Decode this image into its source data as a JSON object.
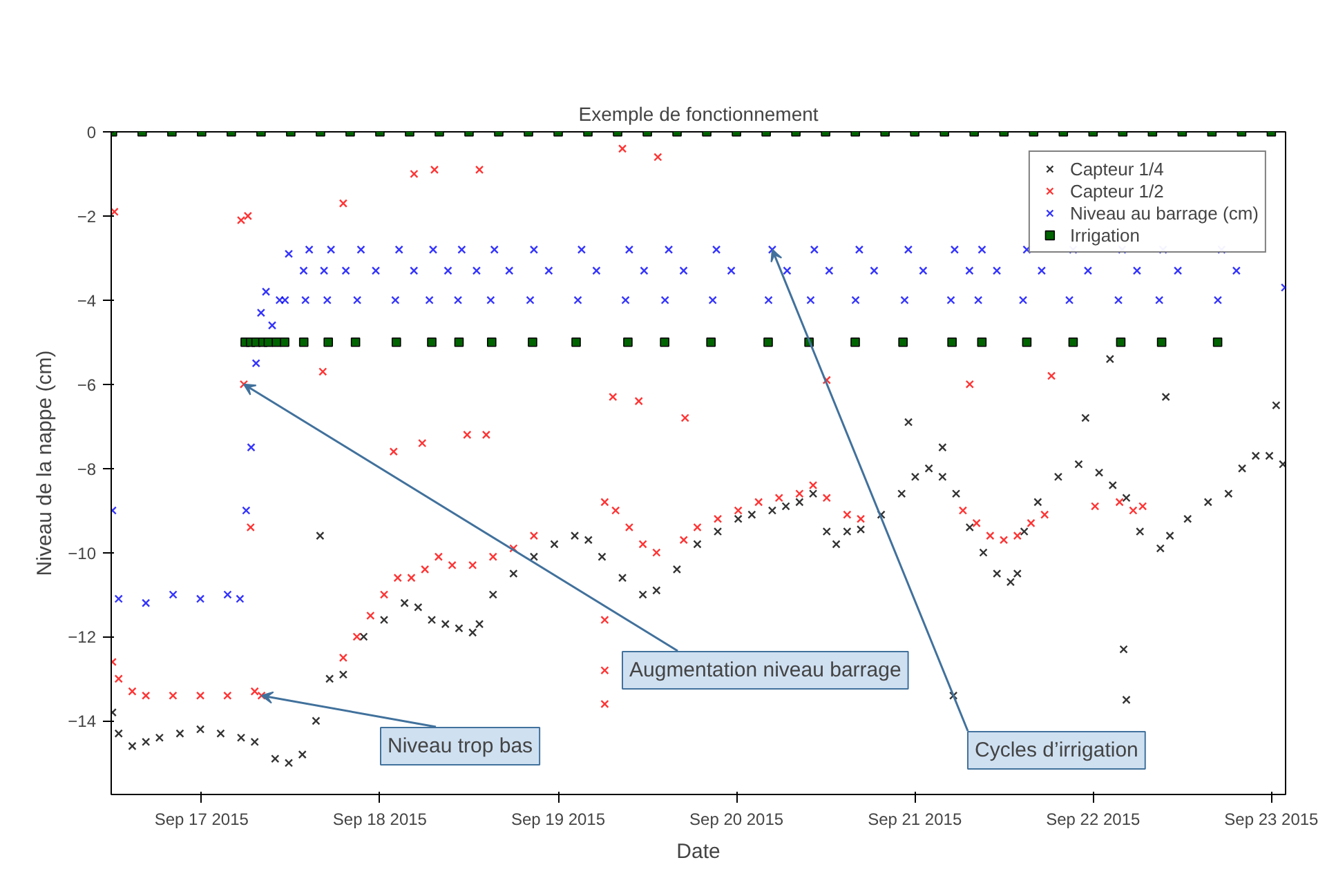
{
  "chart_data": {
    "type": "scatter",
    "title": "Exemple de fonctionnement",
    "xlabel": "Date",
    "ylabel": "Niveau de la nappe (cm)",
    "xlim": [
      "2015-09-16T11:50",
      "2015-09-23T01:55"
    ],
    "ylim": [
      -15.75,
      0
    ],
    "xticks": [
      {
        "value": "2015-09-17",
        "label": "Sep 17 2015"
      },
      {
        "value": "2015-09-18",
        "label": "Sep 18 2015"
      },
      {
        "value": "2015-09-19",
        "label": "Sep 19 2015"
      },
      {
        "value": "2015-09-20",
        "label": "Sep 20 2015"
      },
      {
        "value": "2015-09-21",
        "label": "Sep 21 2015"
      },
      {
        "value": "2015-09-22",
        "label": "Sep 22 2015"
      },
      {
        "value": "2015-09-23",
        "label": "Sep 23 2015"
      }
    ],
    "yticks": [
      {
        "value": 0,
        "label": "0"
      },
      {
        "value": -2,
        "label": "−2"
      },
      {
        "value": -4,
        "label": "−4"
      },
      {
        "value": -6,
        "label": "−6"
      },
      {
        "value": -8,
        "label": "−8"
      },
      {
        "value": -10,
        "label": "−10"
      },
      {
        "value": -12,
        "label": "−12"
      },
      {
        "value": -14,
        "label": "−14"
      }
    ],
    "grid": false,
    "legend": "top right",
    "marker": "cross",
    "annotations": [
      {
        "text": "Augmentation niveau barrage",
        "x": "2015-09-17T05:41",
        "y": -6.0
      },
      {
        "text": "Cycles d’irrigation",
        "x": "2015-09-20T04:49",
        "y": -2.8
      },
      {
        "text": "Niveau trop bas",
        "x": "2015-09-17T08:04",
        "y": -13.4
      }
    ],
    "series": [
      {
        "name": "Capteur 1/4",
        "color": "#000000",
        "x": [
          "2015-09-16T12:00",
          "2015-09-16T12:50",
          "2015-09-16T14:40",
          "2015-09-16T16:30",
          "2015-09-16T18:20",
          "2015-09-16T21:05",
          "2015-09-16T23:50",
          "2015-09-17T02:34",
          "2015-09-17T05:19",
          "2015-09-17T07:09",
          "2015-09-17T09:54",
          "2015-09-17T11:44",
          "2015-09-17T13:34",
          "2015-09-17T15:24",
          "2015-09-17T17:14",
          "2015-09-17T19:04",
          "2015-09-17T21:49",
          "2015-09-18T00:34",
          "2015-09-18T03:19",
          "2015-09-18T05:09",
          "2015-09-18T06:59",
          "2015-09-18T08:49",
          "2015-09-18T10:39",
          "2015-09-18T12:29",
          "2015-09-18T13:24",
          "2015-09-18T15:14",
          "2015-09-18T17:59",
          "2015-09-18T20:44",
          "2015-09-18T23:29",
          "2015-09-19T02:14",
          "2015-09-19T04:04",
          "2015-09-19T05:54",
          "2015-09-19T08:39",
          "2015-09-19T11:24",
          "2015-09-19T13:14",
          "2015-09-19T15:59",
          "2015-09-19T18:44",
          "2015-09-19T21:29",
          "2015-09-20T00:14",
          "2015-09-20T02:04",
          "2015-09-20T04:49",
          "2015-09-20T06:39",
          "2015-09-20T08:29",
          "2015-09-20T10:19",
          "2015-09-20T12:09",
          "2015-09-20T13:26",
          "2015-09-20T14:54",
          "2015-09-20T16:44",
          "2015-09-20T19:29",
          "2015-09-20T22:14",
          "2015-09-21T00:04",
          "2015-09-21T01:54",
          "2015-09-21T03:44",
          "2015-09-21T05:34",
          "2015-09-21T07:24",
          "2015-09-21T09:14",
          "2015-09-21T11:04",
          "2015-09-21T12:54",
          "2015-09-21T13:49",
          "2015-09-21T14:44",
          "2015-09-21T16:34",
          "2015-09-21T19:19",
          "2015-09-21T22:04",
          "2015-09-22T00:49",
          "2015-09-22T02:39",
          "2015-09-22T04:29",
          "2015-09-22T06:19",
          "2015-09-22T09:04",
          "2015-09-22T10:21",
          "2015-09-22T12:44",
          "2015-09-22T15:29",
          "2015-09-22T18:14",
          "2015-09-22T20:04",
          "2015-09-22T21:54",
          "2015-09-22T23:44",
          "2015-09-23T01:34",
          "2015-09-17T15:57",
          "2015-09-21T05:12",
          "2015-09-22T04:07",
          "2015-09-22T04:29",
          "2015-09-22T02:17",
          "2015-09-20T23:09",
          "2015-09-21T03:44",
          "2015-09-21T22:59",
          "2015-09-22T09:48",
          "2015-09-23T00:39"
        ],
        "values": [
          -13.8,
          -14.3,
          -14.6,
          -14.5,
          -14.4,
          -14.3,
          -14.2,
          -14.3,
          -14.4,
          -14.5,
          -14.9,
          -15.0,
          -14.8,
          -14.0,
          -13.0,
          -12.9,
          -12.0,
          -11.6,
          -11.2,
          -11.3,
          -11.6,
          -11.7,
          -11.8,
          -11.9,
          -11.7,
          -11.0,
          -10.5,
          -10.1,
          -9.8,
          -9.6,
          -9.7,
          -10.1,
          -10.6,
          -11.0,
          -10.9,
          -10.4,
          -9.8,
          -9.5,
          -9.2,
          -9.1,
          -9.0,
          -8.9,
          -8.8,
          -8.6,
          -9.5,
          -9.8,
          -9.5,
          -9.45,
          -9.1,
          -8.6,
          -8.2,
          -8.0,
          -8.2,
          -8.6,
          -9.4,
          -10.0,
          -10.5,
          -10.7,
          -10.5,
          -9.5,
          -8.8,
          -8.2,
          -7.9,
          -8.1,
          -8.4,
          -8.7,
          -9.5,
          -9.9,
          -9.6,
          -9.2,
          -8.8,
          -8.6,
          -8.0,
          -7.7,
          -7.7,
          -7.9,
          -9.6,
          -13.4,
          -12.3,
          -13.5,
          -5.4,
          -6.9,
          -7.5,
          -6.8,
          -6.3,
          -6.5
        ]
      },
      {
        "name": "Capteur 1/2",
        "color": "#ff0000",
        "x": [
          "2015-09-16T12:00",
          "2015-09-16T12:50",
          "2015-09-16T14:40",
          "2015-09-16T16:30",
          "2015-09-16T20:09",
          "2015-09-16T23:50",
          "2015-09-17T03:29",
          "2015-09-17T07:09",
          "2015-09-17T08:04",
          "2015-09-17T19:04",
          "2015-09-17T20:54",
          "2015-09-17T22:44",
          "2015-09-18T00:34",
          "2015-09-18T02:24",
          "2015-09-18T04:14",
          "2015-09-18T06:04",
          "2015-09-18T07:54",
          "2015-09-18T09:44",
          "2015-09-18T12:29",
          "2015-09-18T15:14",
          "2015-09-18T17:59",
          "2015-09-18T20:44",
          "2015-09-19T06:16",
          "2015-09-19T07:44",
          "2015-09-19T09:34",
          "2015-09-19T11:24",
          "2015-09-19T13:14",
          "2015-09-19T16:54",
          "2015-09-19T18:44",
          "2015-09-19T21:29",
          "2015-09-20T00:14",
          "2015-09-20T02:59",
          "2015-09-20T05:44",
          "2015-09-20T08:29",
          "2015-09-20T10:19",
          "2015-09-20T12:09",
          "2015-09-20T14:54",
          "2015-09-20T16:44",
          "2015-09-21T06:29",
          "2015-09-21T08:19",
          "2015-09-21T10:09",
          "2015-09-21T11:59",
          "2015-09-21T13:49",
          "2015-09-21T15:39",
          "2015-09-21T17:29",
          "2015-09-22T00:16",
          "2015-09-22T03:34",
          "2015-09-22T05:24",
          "2015-09-22T06:41",
          "2015-09-16T12:16",
          "2015-09-17T05:19",
          "2015-09-17T06:14",
          "2015-09-17T05:41",
          "2015-09-17T06:36",
          "2015-09-17T16:19",
          "2015-09-17T19:04",
          "2015-09-18T01:51",
          "2015-09-18T04:36",
          "2015-09-18T05:42",
          "2015-09-18T07:21",
          "2015-09-18T11:45",
          "2015-09-18T13:24",
          "2015-09-18T14:19",
          "2015-09-19T08:39",
          "2015-09-19T13:25",
          "2015-09-19T07:22",
          "2015-09-19T10:51",
          "2015-09-19T17:05",
          "2015-09-20T12:09",
          "2015-09-21T07:24",
          "2015-09-21T18:24",
          "2015-09-19T06:16",
          "2015-09-19T06:16",
          "2015-09-19T06:16"
        ],
        "values": [
          -12.6,
          -13.0,
          -13.3,
          -13.4,
          -13.4,
          -13.4,
          -13.4,
          -13.3,
          -13.4,
          -12.5,
          -12.0,
          -11.5,
          -11.0,
          -10.6,
          -10.6,
          -10.4,
          -10.1,
          -10.3,
          -10.3,
          -10.1,
          -9.9,
          -9.6,
          -8.8,
          -9.0,
          -9.4,
          -9.8,
          -10.0,
          -9.7,
          -9.4,
          -9.2,
          -9.0,
          -8.8,
          -8.7,
          -8.6,
          -8.4,
          -8.7,
          -9.1,
          -9.2,
          -9.0,
          -9.3,
          -9.6,
          -9.7,
          -9.6,
          -9.3,
          -9.1,
          -8.9,
          -8.8,
          -9.0,
          -8.9,
          -1.9,
          -2.1,
          -2.0,
          -6.0,
          -9.4,
          -5.7,
          -1.7,
          -7.6,
          -1.0,
          -7.4,
          -0.9,
          -7.2,
          -0.9,
          -7.2,
          -0.4,
          -0.6,
          -6.3,
          -6.4,
          -6.8,
          -5.9,
          -6.0,
          -5.8,
          -13.6,
          -12.8,
          -11.6
        ]
      },
      {
        "name": "Niveau au barrage (cm)",
        "color": "#0000ff",
        "x": [
          "2015-09-16T12:00",
          "2015-09-16T12:50",
          "2015-09-16T16:30",
          "2015-09-16T20:10",
          "2015-09-16T23:50",
          "2015-09-17T03:30",
          "2015-09-17T05:10",
          "2015-09-17T06:00",
          "2015-09-17T06:40",
          "2015-09-17T07:20",
          "2015-09-17T08:00",
          "2015-09-17T08:40",
          "2015-09-17T09:30",
          "2015-09-17T10:30",
          "2015-09-17T11:14",
          "2015-09-17T11:44",
          "2015-09-17T13:44",
          "2015-09-17T13:59",
          "2015-09-17T14:29",
          "2015-09-17T16:29",
          "2015-09-17T16:55",
          "2015-09-17T17:25",
          "2015-09-17T19:25",
          "2015-09-17T20:57",
          "2015-09-17T21:27",
          "2015-09-17T23:27",
          "2015-09-18T02:05",
          "2015-09-18T02:35",
          "2015-09-18T04:35",
          "2015-09-18T06:40",
          "2015-09-18T07:10",
          "2015-09-18T09:10",
          "2015-09-18T10:31",
          "2015-09-18T11:01",
          "2015-09-18T13:01",
          "2015-09-18T14:55",
          "2015-09-18T15:25",
          "2015-09-18T17:25",
          "2015-09-18T20:14",
          "2015-09-18T20:44",
          "2015-09-18T22:44",
          "2015-09-19T02:39",
          "2015-09-19T03:09",
          "2015-09-19T05:09",
          "2015-09-19T09:04",
          "2015-09-19T09:34",
          "2015-09-19T11:34",
          "2015-09-19T14:23",
          "2015-09-19T14:53",
          "2015-09-19T16:53",
          "2015-09-19T20:48",
          "2015-09-19T21:18",
          "2015-09-19T23:18",
          "2015-09-20T04:19",
          "2015-09-20T04:49",
          "2015-09-20T06:49",
          "2015-09-20T09:59",
          "2015-09-20T10:29",
          "2015-09-20T12:29",
          "2015-09-20T16:02",
          "2015-09-20T16:32",
          "2015-09-20T18:32",
          "2015-09-20T22:38",
          "2015-09-20T23:08",
          "2015-09-21T01:08",
          "2015-09-21T04:52",
          "2015-09-21T05:22",
          "2015-09-21T07:22",
          "2015-09-21T08:33",
          "2015-09-21T09:03",
          "2015-09-21T11:03",
          "2015-09-21T14:35",
          "2015-09-21T15:05",
          "2015-09-21T17:05",
          "2015-09-21T20:49",
          "2015-09-21T21:19",
          "2015-09-21T23:19",
          "2015-09-22T03:25",
          "2015-09-22T03:55",
          "2015-09-22T05:55",
          "2015-09-22T08:55",
          "2015-09-22T09:25",
          "2015-09-22T11:25",
          "2015-09-22T16:48",
          "2015-09-22T17:18",
          "2015-09-22T19:18",
          "2015-09-23T01:50"
        ],
        "values": [
          -9.0,
          -11.1,
          -11.2,
          -11.0,
          -11.1,
          -11.0,
          -11.1,
          -9.0,
          -7.5,
          -5.5,
          -4.3,
          -3.8,
          -4.6,
          -4.0,
          -4.0,
          -2.9,
          -3.3,
          -4.0,
          -2.8,
          -3.3,
          -4.0,
          -2.8,
          -3.3,
          -4.0,
          -2.8,
          -3.3,
          -4.0,
          -2.8,
          -3.3,
          -4.0,
          -2.8,
          -3.3,
          -4.0,
          -2.8,
          -3.3,
          -4.0,
          -2.8,
          -3.3,
          -4.0,
          -2.8,
          -3.3,
          -4.0,
          -2.8,
          -3.3,
          -4.0,
          -2.8,
          -3.3,
          -4.0,
          -2.8,
          -3.3,
          -4.0,
          -2.8,
          -3.3,
          -4.0,
          -2.8,
          -3.3,
          -4.0,
          -2.8,
          -3.3,
          -4.0,
          -2.8,
          -3.3,
          -4.0,
          -2.8,
          -3.3,
          -4.0,
          -2.8,
          -3.3,
          -4.0,
          -2.8,
          -3.3,
          -4.0,
          -2.8,
          -3.3,
          -4.0,
          -2.8,
          -3.3,
          -4.0,
          -2.8,
          -3.3,
          -4.0,
          -2.8,
          -3.3,
          -4.0,
          -2.8,
          -3.3,
          -3.7
        ]
      },
      {
        "name": "Irrigation",
        "color": "#006400",
        "marker": "square",
        "x": [
          "2015-09-17T05:52",
          "2015-09-17T06:36",
          "2015-09-17T07:20",
          "2015-09-17T08:15",
          "2015-09-17T08:59",
          "2015-09-17T10:05",
          "2015-09-17T11:11",
          "2015-09-17T13:45",
          "2015-09-17T17:03",
          "2015-09-17T20:43",
          "2015-09-18T02:13",
          "2015-09-18T06:59",
          "2015-09-18T10:39",
          "2015-09-18T15:03",
          "2015-09-18T20:33",
          "2015-09-19T02:25",
          "2015-09-19T09:23",
          "2015-09-19T14:20",
          "2015-09-19T20:34",
          "2015-09-20T04:16",
          "2015-09-20T09:46",
          "2015-09-20T15:59",
          "2015-09-20T22:25",
          "2015-09-21T05:01",
          "2015-09-21T09:02",
          "2015-09-21T15:05",
          "2015-09-21T21:19",
          "2015-09-22T03:44",
          "2015-09-22T09:14",
          "2015-09-22T16:46",
          "2015-09-16T12:00",
          "2015-09-16T16:00",
          "2015-09-16T20:00",
          "2015-09-17T00:00",
          "2015-09-17T04:00",
          "2015-09-17T08:00",
          "2015-09-17T12:00",
          "2015-09-17T16:00",
          "2015-09-17T20:00",
          "2015-09-18T00:00",
          "2015-09-18T04:00",
          "2015-09-18T08:00",
          "2015-09-18T12:00",
          "2015-09-18T16:00",
          "2015-09-18T20:00",
          "2015-09-19T00:00",
          "2015-09-19T04:00",
          "2015-09-19T08:00",
          "2015-09-19T12:00",
          "2015-09-19T16:00",
          "2015-09-19T20:00",
          "2015-09-20T00:00",
          "2015-09-20T04:00",
          "2015-09-20T08:00",
          "2015-09-20T12:00",
          "2015-09-20T16:00",
          "2015-09-20T20:00",
          "2015-09-21T00:00",
          "2015-09-21T04:00",
          "2015-09-21T08:00",
          "2015-09-21T12:00",
          "2015-09-21T16:00",
          "2015-09-21T20:00",
          "2015-09-22T00:00",
          "2015-09-22T04:00",
          "2015-09-22T08:00",
          "2015-09-22T12:00",
          "2015-09-22T16:00",
          "2015-09-22T20:00",
          "2015-09-23T00:00"
        ],
        "values": [
          -5,
          -5,
          -5,
          -5,
          -5,
          -5,
          -5,
          -5,
          -5,
          -5,
          -5,
          -5,
          -5,
          -5,
          -5,
          -5,
          -5,
          -5,
          -5,
          -5,
          -5,
          -5,
          -5,
          -5,
          -5,
          -5,
          -5,
          -5,
          -5,
          -5,
          0,
          0,
          0,
          0,
          0,
          0,
          0,
          0,
          0,
          0,
          0,
          0,
          0,
          0,
          0,
          0,
          0,
          0,
          0,
          0,
          0,
          0,
          0,
          0,
          0,
          0,
          0,
          0,
          0,
          0,
          0,
          0,
          0,
          0,
          0,
          0,
          0,
          0,
          0,
          0
        ]
      }
    ]
  }
}
